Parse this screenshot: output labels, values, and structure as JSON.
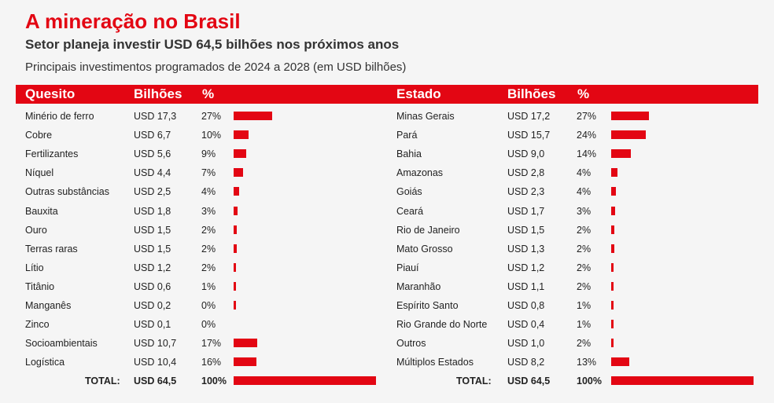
{
  "title": "A mineração no Brasil",
  "subtitle": "Setor planeja investir USD 64,5 bilhões nos próximos anos",
  "note": "Principais investimentos programados de 2024 a 2028 (em USD bilhões)",
  "colors": {
    "accent": "#e30613"
  },
  "chart_data": [
    {
      "type": "bar",
      "orientation": "horizontal",
      "headers": {
        "label": "Quesito",
        "value": "Bilhões",
        "pct": "%"
      },
      "rows": [
        {
          "label": "Minério de ferro",
          "value_text": "USD 17,3",
          "value": 17.3,
          "pct_text": "27%",
          "pct": 27
        },
        {
          "label": "Cobre",
          "value_text": "USD 6,7",
          "value": 6.7,
          "pct_text": "10%",
          "pct": 10
        },
        {
          "label": "Fertilizantes",
          "value_text": "USD 5,6",
          "value": 5.6,
          "pct_text": "9%",
          "pct": 9
        },
        {
          "label": "Níquel",
          "value_text": "USD 4,4",
          "value": 4.4,
          "pct_text": "7%",
          "pct": 7
        },
        {
          "label": "Outras substâncias",
          "value_text": "USD 2,5",
          "value": 2.5,
          "pct_text": "4%",
          "pct": 4
        },
        {
          "label": "Bauxita",
          "value_text": "USD 1,8",
          "value": 1.8,
          "pct_text": "3%",
          "pct": 3
        },
        {
          "label": "Ouro",
          "value_text": "USD 1,5",
          "value": 1.5,
          "pct_text": "2%",
          "pct": 2
        },
        {
          "label": "Terras raras",
          "value_text": "USD 1,5",
          "value": 1.5,
          "pct_text": "2%",
          "pct": 2
        },
        {
          "label": "Lítio",
          "value_text": "USD 1,2",
          "value": 1.2,
          "pct_text": "2%",
          "pct": 2
        },
        {
          "label": "Titânio",
          "value_text": "USD 0,6",
          "value": 0.6,
          "pct_text": "1%",
          "pct": 1
        },
        {
          "label": "Manganês",
          "value_text": "USD 0,2",
          "value": 0.2,
          "pct_text": "0%",
          "pct": 0
        },
        {
          "label": "Zinco",
          "value_text": "USD 0,1",
          "value": 0.1,
          "pct_text": "0%",
          "pct": 0
        },
        {
          "label": "Socioambientais",
          "value_text": "USD 10,7",
          "value": 10.7,
          "pct_text": "17%",
          "pct": 17
        },
        {
          "label": "Logística",
          "value_text": "USD 10,4",
          "value": 10.4,
          "pct_text": "16%",
          "pct": 16
        }
      ],
      "total": {
        "label": "TOTAL:",
        "value_text": "USD 64,5",
        "value": 64.5,
        "pct_text": "100%",
        "pct": 100
      }
    },
    {
      "type": "bar",
      "orientation": "horizontal",
      "headers": {
        "label": "Estado",
        "value": "Bilhões",
        "pct": "%"
      },
      "rows": [
        {
          "label": "Minas Gerais",
          "value_text": "USD 17,2",
          "value": 17.2,
          "pct_text": "27%",
          "pct": 27
        },
        {
          "label": "Pará",
          "value_text": "USD 15,7",
          "value": 15.7,
          "pct_text": "24%",
          "pct": 24
        },
        {
          "label": "Bahia",
          "value_text": "USD 9,0",
          "value": 9.0,
          "pct_text": "14%",
          "pct": 14
        },
        {
          "label": "Amazonas",
          "value_text": "USD 2,8",
          "value": 2.8,
          "pct_text": "4%",
          "pct": 4
        },
        {
          "label": "Goiás",
          "value_text": "USD 2,3",
          "value": 2.3,
          "pct_text": "4%",
          "pct": 4
        },
        {
          "label": "Ceará",
          "value_text": "USD 1,7",
          "value": 1.7,
          "pct_text": "3%",
          "pct": 3
        },
        {
          "label": "Rio de Janeiro",
          "value_text": "USD 1,5",
          "value": 1.5,
          "pct_text": "2%",
          "pct": 2
        },
        {
          "label": "Mato Grosso",
          "value_text": "USD 1,3",
          "value": 1.3,
          "pct_text": "2%",
          "pct": 2
        },
        {
          "label": "Piauí",
          "value_text": "USD 1,2",
          "value": 1.2,
          "pct_text": "2%",
          "pct": 2
        },
        {
          "label": "Maranhão",
          "value_text": "USD 1,1",
          "value": 1.1,
          "pct_text": "2%",
          "pct": 2
        },
        {
          "label": "Espírito Santo",
          "value_text": "USD 0,8",
          "value": 0.8,
          "pct_text": "1%",
          "pct": 1
        },
        {
          "label": "Rio Grande do Norte",
          "value_text": "USD 0,4",
          "value": 0.4,
          "pct_text": "1%",
          "pct": 1
        },
        {
          "label": "Outros",
          "value_text": "USD 1,0",
          "value": 1.0,
          "pct_text": "2%",
          "pct": 2
        },
        {
          "label": "Múltiplos Estados",
          "value_text": "USD 8,2",
          "value": 8.2,
          "pct_text": "13%",
          "pct": 13
        }
      ],
      "total": {
        "label": "TOTAL:",
        "value_text": "USD 64,5",
        "value": 64.5,
        "pct_text": "100%",
        "pct": 100
      }
    }
  ]
}
